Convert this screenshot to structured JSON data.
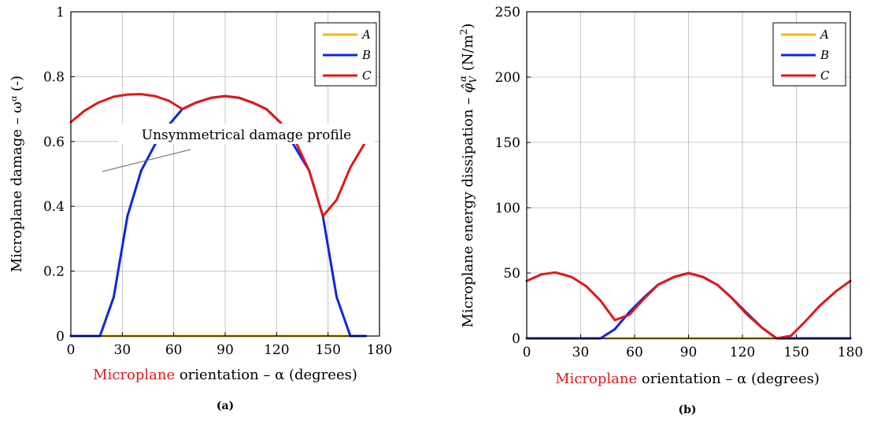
{
  "colors": {
    "A": "#F5B800",
    "B": "#1024E0",
    "C": "#E01818",
    "grid": "#b8b8b8",
    "accent_word": "#E01818"
  },
  "chart_data": [
    {
      "type": "line",
      "caption": "(a)",
      "xlabel_pre": "Microplane",
      "xlabel_post": " orientation – α (degrees)",
      "ylabel": "Microplane damage – ωᵅ (-)",
      "xlim": [
        0,
        180
      ],
      "ylim": [
        0,
        1
      ],
      "xticks": [
        "0",
        "30",
        "60",
        "90",
        "120",
        "150",
        "180"
      ],
      "yticks": [
        "0",
        "0.2",
        "0.4",
        "0.6",
        "0.8",
        "1"
      ],
      "xtick_values": [
        0,
        30,
        60,
        90,
        120,
        150,
        180
      ],
      "ytick_values": [
        0,
        0.2,
        0.4,
        0.6,
        0.8,
        1
      ],
      "grid": true,
      "legend_position": "top-right",
      "annotation": "Unsymmetrical damage profile",
      "series": [
        {
          "name": "A",
          "x": [
            0,
            172
          ],
          "y": [
            0,
            0
          ]
        },
        {
          "name": "B",
          "x": [
            0,
            17,
            25,
            33,
            41,
            49,
            57,
            65,
            73,
            82,
            90,
            98,
            106,
            114,
            122,
            131,
            139,
            147,
            155,
            163,
            172
          ],
          "y": [
            0,
            0,
            0.12,
            0.37,
            0.51,
            0.59,
            0.65,
            0.7,
            0.72,
            0.735,
            0.74,
            0.735,
            0.72,
            0.7,
            0.66,
            0.58,
            0.51,
            0.37,
            0.12,
            0,
            0
          ]
        },
        {
          "name": "C",
          "x": [
            0,
            8,
            16,
            25,
            33,
            41,
            49,
            57,
            65,
            73,
            82,
            90,
            98,
            106,
            114,
            122,
            131,
            139,
            147,
            155,
            163,
            172
          ],
          "y": [
            0.66,
            0.695,
            0.72,
            0.738,
            0.745,
            0.746,
            0.74,
            0.726,
            0.7,
            0.72,
            0.735,
            0.74,
            0.735,
            0.72,
            0.7,
            0.66,
            0.6,
            0.51,
            0.37,
            0.42,
            0.52,
            0.6
          ]
        }
      ]
    },
    {
      "type": "line",
      "caption": "(b)",
      "xlabel_pre": "Microplane",
      "xlabel_post": " orientation – α (degrees)",
      "ylabel_main": "Microplane energy dissipation – ",
      "ylabel_sym": "φ̂",
      "ylabel_sub": "V",
      "ylabel_sup": "α",
      "ylabel_unit": " (N/m",
      "ylabel_unit_sup": "2",
      "ylabel_unit_end": ")",
      "xlim": [
        0,
        180
      ],
      "ylim": [
        0,
        250
      ],
      "xticks": [
        "0",
        "30",
        "60",
        "90",
        "120",
        "150",
        "180"
      ],
      "yticks": [
        "0",
        "50",
        "100",
        "150",
        "200",
        "250"
      ],
      "xtick_values": [
        0,
        30,
        60,
        90,
        120,
        150,
        180
      ],
      "ytick_values": [
        0,
        50,
        100,
        150,
        200,
        250
      ],
      "grid": true,
      "legend_position": "top-right",
      "series": [
        {
          "name": "A",
          "x": [
            0,
            180
          ],
          "y": [
            0,
            0
          ]
        },
        {
          "name": "B",
          "x": [
            0,
            41,
            49,
            57,
            65,
            73,
            82,
            90,
            98,
            106,
            114,
            122,
            131,
            139,
            180
          ],
          "y": [
            0,
            0,
            7,
            20,
            31,
            41,
            47,
            50,
            47,
            41,
            31,
            20,
            8,
            0,
            0
          ]
        },
        {
          "name": "C",
          "x": [
            0,
            8,
            16,
            25,
            33,
            41,
            49,
            57,
            65,
            73,
            82,
            90,
            98,
            106,
            114,
            122,
            131,
            139,
            147,
            155,
            163,
            172,
            180
          ],
          "y": [
            44,
            49,
            50.5,
            47,
            40,
            29,
            14,
            18,
            30,
            41,
            47,
            50,
            47,
            41,
            31,
            19,
            8,
            0,
            2,
            13,
            25,
            36,
            44
          ]
        }
      ]
    }
  ]
}
